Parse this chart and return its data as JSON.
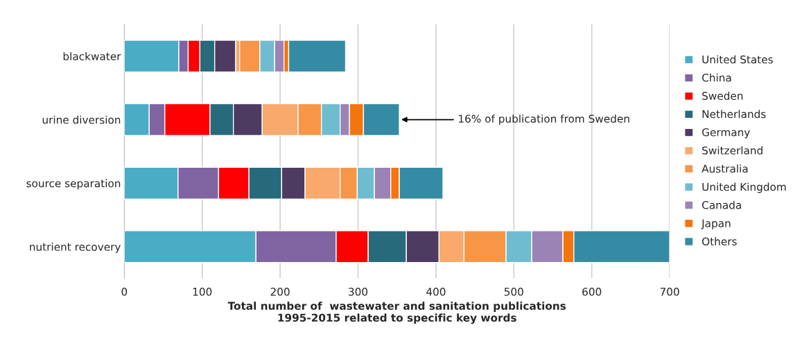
{
  "chart_data": {
    "type": "bar",
    "orientation": "horizontal",
    "stacked": true,
    "xlabel": "Total number of  wastewater and sanitation publications\n1995-2015 related to specific key words",
    "categories": [
      "blackwater",
      "urine diversion",
      "source separation",
      "nutrient recovery"
    ],
    "series": [
      {
        "name": "United States",
        "color": "#4bacc6",
        "values": [
          70,
          32,
          69,
          169
        ]
      },
      {
        "name": "China",
        "color": "#8064a2",
        "values": [
          12,
          20,
          52,
          103
        ]
      },
      {
        "name": "Sweden",
        "color": "#ff0000",
        "values": [
          15,
          58,
          39,
          41
        ]
      },
      {
        "name": "Netherlands",
        "color": "#276a7c",
        "values": [
          19,
          30,
          42,
          49
        ]
      },
      {
        "name": "Germany",
        "color": "#4d3b62",
        "values": [
          27,
          37,
          30,
          42
        ]
      },
      {
        "name": "Switzerland",
        "color": "#f8a96b",
        "values": [
          5,
          46,
          45,
          32
        ]
      },
      {
        "name": "Australia",
        "color": "#f79646",
        "values": [
          26,
          30,
          22,
          54
        ]
      },
      {
        "name": "United Kingdom",
        "color": "#6fbcd0",
        "values": [
          19,
          24,
          22,
          33
        ]
      },
      {
        "name": "Canada",
        "color": "#9b83b6",
        "values": [
          12,
          12,
          21,
          40
        ]
      },
      {
        "name": "Japan",
        "color": "#f3750e",
        "values": [
          6,
          18,
          11,
          14
        ]
      },
      {
        "name": "Others",
        "color": "#358ba3",
        "values": [
          73,
          46,
          56,
          123
        ]
      }
    ],
    "xlim": [
      0,
      700
    ],
    "xticks": [
      0,
      100,
      200,
      300,
      400,
      500,
      600,
      700
    ],
    "grid": "x",
    "legend": "right",
    "annotations": [
      {
        "text": "16% of publication from Sweden",
        "x": 353,
        "y": "urine diversion"
      }
    ]
  }
}
